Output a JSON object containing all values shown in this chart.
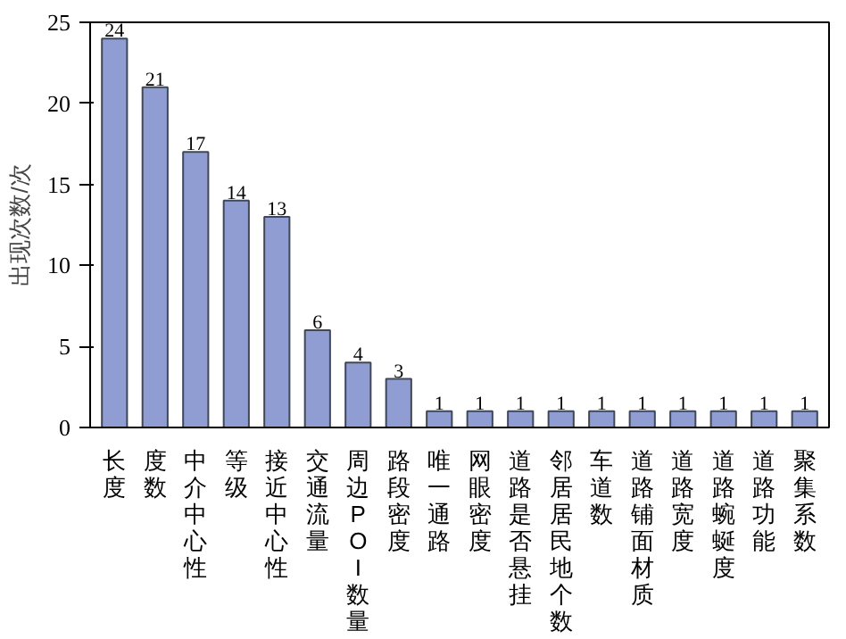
{
  "chart_data": {
    "type": "bar",
    "ylabel": "出现次数/次",
    "categories": [
      "长度",
      "度数",
      "中介中心性",
      "等级",
      "接近中心性",
      "交通流量",
      "周边POI数量",
      "路段密度",
      "唯一通路",
      "网眼密度",
      "道路是否悬挂",
      "邻居居民地个数",
      "车道数",
      "道路铺面材质",
      "道路宽度",
      "道路蜿蜒度",
      "道路功能",
      "聚集系数"
    ],
    "values": [
      24,
      21,
      17,
      14,
      13,
      6,
      4,
      3,
      1,
      1,
      1,
      1,
      1,
      1,
      1,
      1,
      1,
      1
    ],
    "color": "#8f9dd3",
    "data_labels": true,
    "ylim": [
      0,
      25
    ],
    "yticks": [
      0,
      5,
      10,
      15,
      20,
      25
    ],
    "grid": false
  }
}
